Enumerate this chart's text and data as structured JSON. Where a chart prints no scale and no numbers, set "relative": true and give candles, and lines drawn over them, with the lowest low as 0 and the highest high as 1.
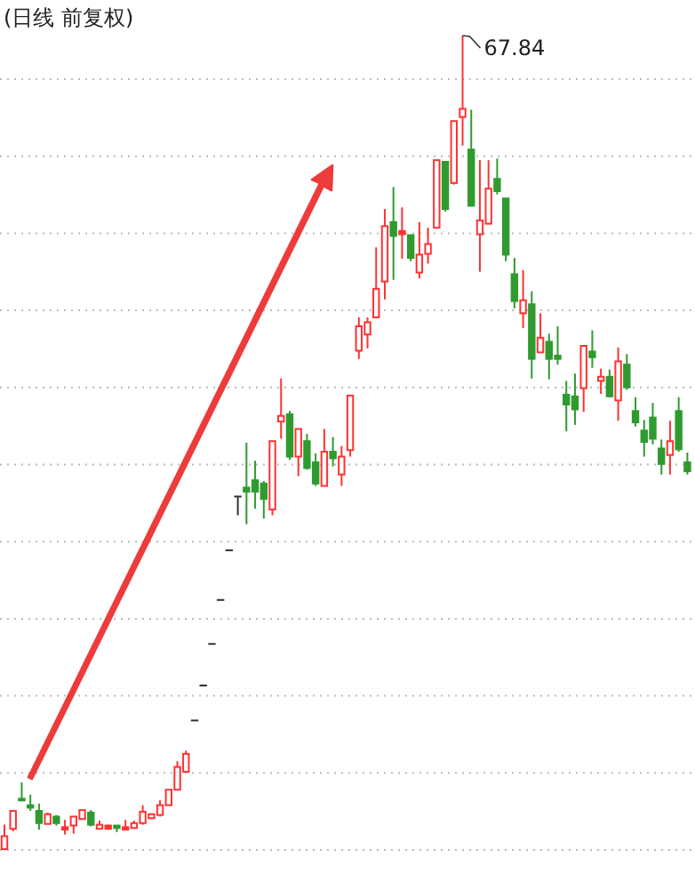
{
  "chart_data": {
    "type": "candlestick",
    "title": "(日线 前复权)",
    "relative": true,
    "grid": "y",
    "categories": [
      null,
      null,
      null,
      null,
      null,
      null,
      null,
      null,
      null,
      null,
      null,
      null,
      null,
      null,
      null,
      null,
      null,
      null,
      null,
      null,
      null,
      null,
      null,
      null,
      null,
      null,
      null,
      null,
      null,
      null,
      null,
      null,
      null,
      null,
      null,
      null,
      null,
      null,
      null,
      null,
      null,
      null,
      null,
      null,
      null,
      null,
      null,
      null,
      null,
      null,
      null,
      null,
      null,
      null,
      null,
      null,
      null,
      null,
      null,
      null,
      null,
      null,
      null,
      null,
      null,
      null,
      null,
      null,
      null,
      null,
      null,
      null,
      null,
      null,
      null,
      null,
      null,
      null,
      null,
      null
    ],
    "ohlc": [
      [
        0.001,
        0.031,
        0,
        0.017
      ],
      [
        0.026,
        0.048,
        0.023,
        0.048
      ],
      [
        0.063,
        0.083,
        0.061,
        0.061
      ],
      [
        0.055,
        0.068,
        0.048,
        0.052
      ],
      [
        0.048,
        0.057,
        0.025,
        0.033
      ],
      [
        0.032,
        0.046,
        0.032,
        0.044
      ],
      [
        0.041,
        0.043,
        0.03,
        0.033
      ],
      [
        0.025,
        0.037,
        0.019,
        0.028
      ],
      [
        0.03,
        0.041,
        0.02,
        0.041
      ],
      [
        0.038,
        0.049,
        0.038,
        0.049
      ],
      [
        0.046,
        0.049,
        0.029,
        0.031
      ],
      [
        0.026,
        0.036,
        0.025,
        0.031
      ],
      [
        0.026,
        0.031,
        0.025,
        0.03
      ],
      [
        0.03,
        0.03,
        0.022,
        0.027
      ],
      [
        0.025,
        0.037,
        0.025,
        0.028
      ],
      [
        0.027,
        0.036,
        0.026,
        0.033
      ],
      [
        0.033,
        0.055,
        0.031,
        0.047
      ],
      [
        0.039,
        0.044,
        0.038,
        0.044
      ],
      [
        0.043,
        0.061,
        0.041,
        0.055
      ],
      [
        0.055,
        0.074,
        0.055,
        0.074
      ],
      [
        0.074,
        0.109,
        0.074,
        0.102
      ],
      [
        0.096,
        0.122,
        0.096,
        0.118
      ],
      [
        0.159,
        0.159,
        0.159,
        0.159
      ],
      [
        0.202,
        0.202,
        0.202,
        0.202
      ],
      [
        0.253,
        0.253,
        0.253,
        0.253
      ],
      [
        0.307,
        0.307,
        0.307,
        0.307
      ],
      [
        0.368,
        0.368,
        0.368,
        0.368
      ],
      [
        0.434,
        0.434,
        0.411,
        0.434
      ],
      [
        0.445,
        0.5,
        0.4,
        0.44
      ],
      [
        0.454,
        0.478,
        0.419,
        0.44
      ],
      [
        0.45,
        0.453,
        0.407,
        0.431
      ],
      [
        0.418,
        0.502,
        0.411,
        0.502
      ],
      [
        0.526,
        0.579,
        0.505,
        0.533
      ],
      [
        0.535,
        0.539,
        0.479,
        0.483
      ],
      [
        0.483,
        0.517,
        0.459,
        0.517
      ],
      [
        0.502,
        0.511,
        0.467,
        0.469
      ],
      [
        0.476,
        0.487,
        0.447,
        0.45
      ],
      [
        0.447,
        0.517,
        0.447,
        0.489
      ],
      [
        0.489,
        0.507,
        0.471,
        0.481
      ],
      [
        0.461,
        0.496,
        0.447,
        0.483
      ],
      [
        0.491,
        0.558,
        0.483,
        0.558
      ],
      [
        0.613,
        0.654,
        0.603,
        0.643
      ],
      [
        0.633,
        0.654,
        0.616,
        0.648
      ],
      [
        0.654,
        0.74,
        0.654,
        0.689
      ],
      [
        0.698,
        0.787,
        0.676,
        0.766
      ],
      [
        0.771,
        0.814,
        0.7,
        0.754
      ],
      [
        0.756,
        0.789,
        0.726,
        0.76
      ],
      [
        0.755,
        0.755,
        0.723,
        0.727
      ],
      [
        0.709,
        0.771,
        0.702,
        0.731
      ],
      [
        0.732,
        0.764,
        0.72,
        0.744
      ],
      [
        0.764,
        0.847,
        0.764,
        0.847
      ],
      [
        0.845,
        0.845,
        0.784,
        0.787
      ],
      [
        0.819,
        0.895,
        0.817,
        0.895
      ],
      [
        0.9,
        1,
        0.865,
        0.91
      ],
      [
        0.86,
        0.909,
        0.791,
        0.791
      ],
      [
        0.756,
        0.847,
        0.71,
        0.773
      ],
      [
        0.769,
        0.847,
        0.769,
        0.812
      ],
      [
        0.824,
        0.849,
        0.805,
        0.809
      ],
      [
        0.8,
        0.8,
        0.723,
        0.731
      ],
      [
        0.707,
        0.727,
        0.665,
        0.674
      ],
      [
        0.659,
        0.712,
        0.641,
        0.675
      ],
      [
        0.67,
        0.686,
        0.579,
        0.603
      ],
      [
        0.611,
        0.659,
        0.611,
        0.629
      ],
      [
        0.624,
        0.634,
        0.578,
        0.603
      ],
      [
        0.607,
        0.643,
        0.596,
        0.603
      ],
      [
        0.559,
        0.576,
        0.514,
        0.547
      ],
      [
        0.557,
        0.585,
        0.522,
        0.541
      ],
      [
        0.567,
        0.619,
        0.538,
        0.619
      ],
      [
        0.612,
        0.638,
        0.592,
        0.605
      ],
      [
        0.576,
        0.591,
        0.56,
        0.581
      ],
      [
        0.581,
        0.59,
        0.556,
        0.557
      ],
      [
        0.552,
        0.617,
        0.527,
        0.6
      ],
      [
        0.596,
        0.609,
        0.565,
        0.568
      ],
      [
        0.539,
        0.556,
        0.52,
        0.525
      ],
      [
        0.515,
        0.528,
        0.483,
        0.501
      ],
      [
        0.531,
        0.549,
        0.498,
        0.505
      ],
      [
        0.493,
        0.504,
        0.461,
        0.474
      ],
      [
        0.485,
        0.527,
        0.461,
        0.502
      ],
      [
        0.539,
        0.556,
        0.489,
        0.492
      ],
      [
        0.476,
        0.488,
        0.461,
        0.465
      ]
    ],
    "colors": [
      "#ff3232",
      "#ff3232",
      "#2f9b2f",
      "#2f9b2f",
      "#2f9b2f",
      "#ff3232",
      "#2f9b2f",
      "#ff3232",
      "#ff3232",
      "#ff3232",
      "#2f9b2f",
      "#ff3232",
      "#ff3232",
      "#2f9b2f",
      "#ff3232",
      "#ff3232",
      "#ff3232",
      "#ff3232",
      "#ff3232",
      "#ff3232",
      "#ff3232",
      "#ff3232",
      "#333333",
      "#333333",
      "#333333",
      "#333333",
      "#333333",
      "#333333",
      "#2f9b2f",
      "#2f9b2f",
      "#2f9b2f",
      "#ff3232",
      "#ff3232",
      "#2f9b2f",
      "#ff3232",
      "#2f9b2f",
      "#2f9b2f",
      "#ff3232",
      "#2f9b2f",
      "#ff3232",
      "#ff3232",
      "#ff3232",
      "#ff3232",
      "#ff3232",
      "#ff3232",
      "#2f9b2f",
      "#ff3232",
      "#2f9b2f",
      "#ff3232",
      "#ff3232",
      "#ff3232",
      "#2f9b2f",
      "#ff3232",
      "#ff3232",
      "#2f9b2f",
      "#ff3232",
      "#ff3232",
      "#2f9b2f",
      "#2f9b2f",
      "#2f9b2f",
      "#ff3232",
      "#2f9b2f",
      "#ff3232",
      "#2f9b2f",
      "#2f9b2f",
      "#2f9b2f",
      "#2f9b2f",
      "#ff3232",
      "#2f9b2f",
      "#ff3232",
      "#2f9b2f",
      "#ff3232",
      "#2f9b2f",
      "#2f9b2f",
      "#2f9b2f",
      "#2f9b2f",
      "#2f9b2f",
      "#ff3232",
      "#2f9b2f",
      "#2f9b2f"
    ],
    "annotations": [
      "67.84"
    ]
  }
}
